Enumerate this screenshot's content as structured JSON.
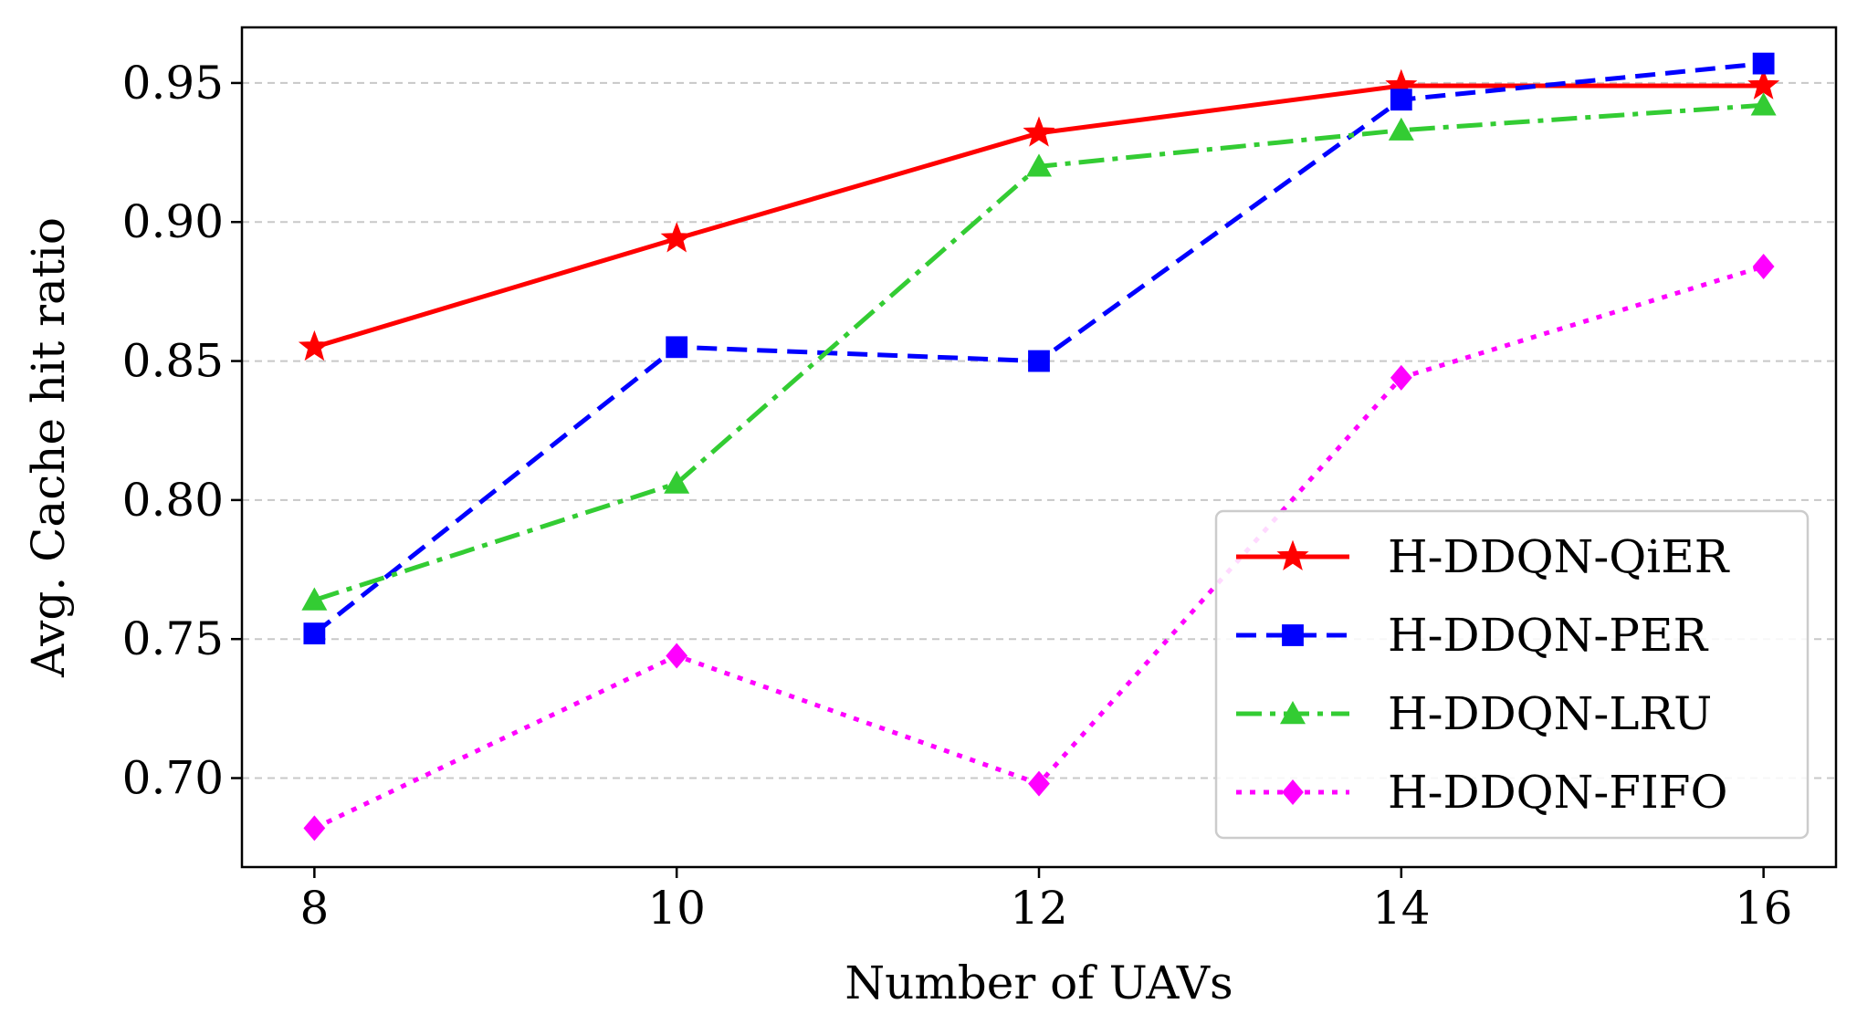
{
  "chart_data": {
    "type": "line",
    "title": "",
    "xlabel": "Number of UAVs",
    "ylabel": "Avg. Cache hit ratio",
    "x": [
      8,
      10,
      12,
      14,
      16
    ],
    "xticks": [
      "8",
      "10",
      "12",
      "14",
      "16"
    ],
    "yticks": [
      "0.70",
      "0.75",
      "0.80",
      "0.85",
      "0.90",
      "0.95"
    ],
    "xlim": [
      7.6,
      16.4
    ],
    "ylim": [
      0.668,
      0.97
    ],
    "grid": "horizontal-dashed",
    "legend_position": "lower-right",
    "series": [
      {
        "name": "H-DDQN-QiER",
        "values": [
          0.855,
          0.894,
          0.932,
          0.949,
          0.949
        ],
        "color": "#ff0000",
        "marker": "star",
        "line": "solid"
      },
      {
        "name": "H-DDQN-PER",
        "values": [
          0.752,
          0.855,
          0.85,
          0.944,
          0.957
        ],
        "color": "#0000ff",
        "marker": "square",
        "line": "dashed"
      },
      {
        "name": "H-DDQN-LRU",
        "values": [
          0.764,
          0.806,
          0.92,
          0.933,
          0.942
        ],
        "color": "#33cc33",
        "marker": "triangle",
        "line": "dashdot"
      },
      {
        "name": "H-DDQN-FIFO",
        "values": [
          0.682,
          0.744,
          0.698,
          0.844,
          0.884
        ],
        "color": "#ff00ff",
        "marker": "diamond",
        "line": "dotted"
      }
    ]
  }
}
